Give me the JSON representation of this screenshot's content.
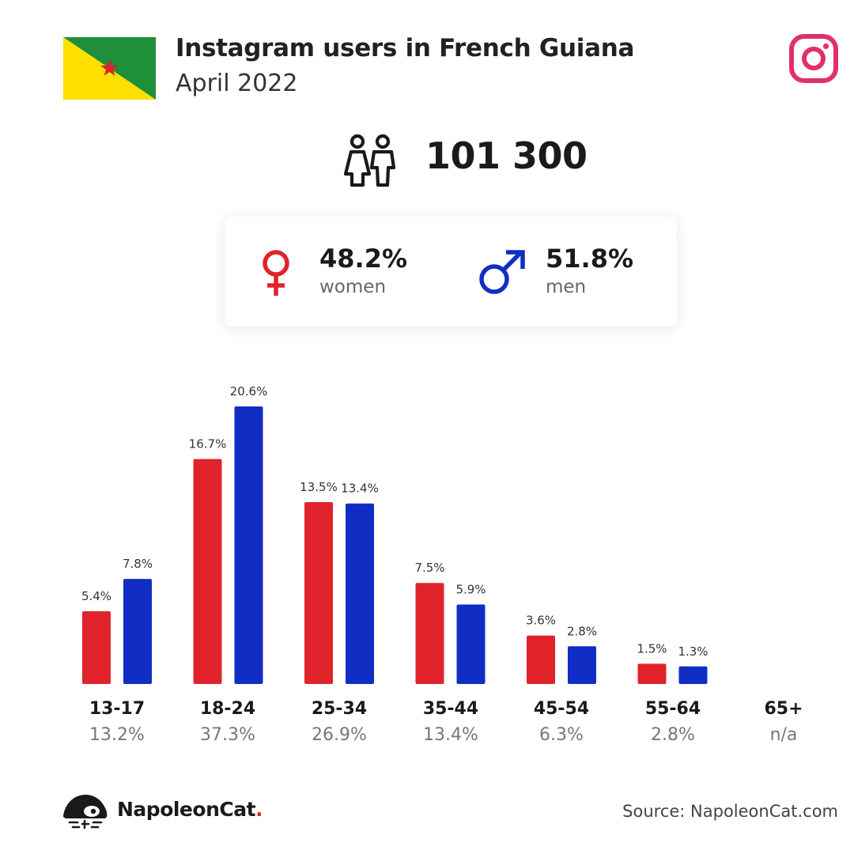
{
  "header": {
    "title": "Instagram users in French Guiana",
    "subtitle": "April 2022"
  },
  "summary": {
    "total_users": "101 300",
    "women_pct": "48.2%",
    "women_label": "women",
    "men_pct": "51.8%",
    "men_label": "men"
  },
  "colors": {
    "women": "#e0232a",
    "men": "#102ec4",
    "instagram": "#e1306c",
    "flag_green": "#1f8f3a",
    "flag_yellow": "#fddf00",
    "flag_star": "#e0232a"
  },
  "icons": {
    "flag": "french-guiana-flag",
    "brand": "instagram-icon",
    "users": "people-icon",
    "female": "female-symbol-icon",
    "male": "male-symbol-icon",
    "logo": "napoleoncat-icon"
  },
  "chart_data": {
    "type": "bar",
    "categories": [
      "13-17",
      "18-24",
      "25-34",
      "35-44",
      "45-54",
      "55-64",
      "65+"
    ],
    "group_shares": [
      "13.2%",
      "37.3%",
      "26.9%",
      "13.4%",
      "6.3%",
      "2.8%",
      "n/a"
    ],
    "series": [
      {
        "key": "women",
        "values": [
          5.4,
          16.7,
          13.5,
          7.5,
          3.6,
          1.5,
          null
        ],
        "labels": [
          "5.4%",
          "16.7%",
          "13.5%",
          "7.5%",
          "3.6%",
          "1.5%",
          ""
        ]
      },
      {
        "key": "men",
        "values": [
          7.8,
          20.6,
          13.4,
          5.9,
          2.8,
          1.3,
          null
        ],
        "labels": [
          "7.8%",
          "20.6%",
          "13.4%",
          "5.9%",
          "2.8%",
          "1.3%",
          ""
        ]
      }
    ],
    "ylim": [
      0,
      20.6
    ],
    "grid": false
  },
  "footer": {
    "logo_name": "NapoleonCat",
    "logo_dot": ".",
    "source": "Source: NapoleonCat.com"
  }
}
